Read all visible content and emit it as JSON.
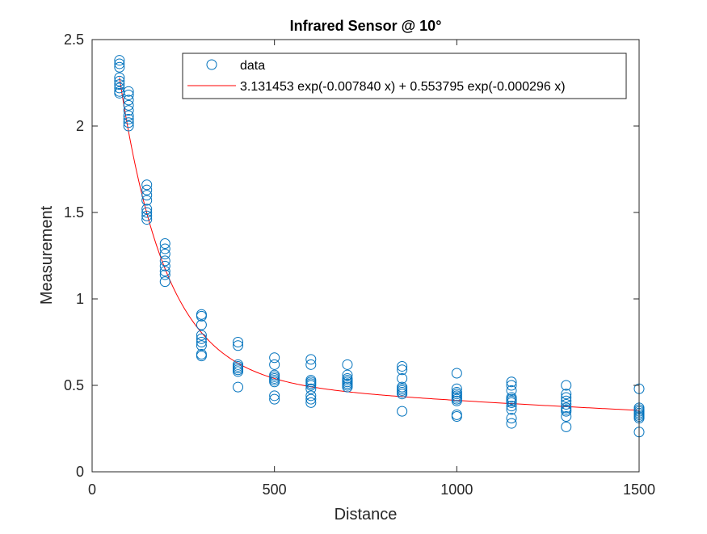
{
  "chart_data": {
    "type": "scatter",
    "title": "Infrared Sensor @ 10°",
    "xlabel": "Distance",
    "ylabel": "Measurement",
    "xlim": [
      0,
      1500
    ],
    "ylim": [
      0,
      2.5
    ],
    "xticks": [
      0,
      500,
      1000,
      1500
    ],
    "xtick_labels": [
      "0",
      "500",
      "1000",
      "1500"
    ],
    "yticks": [
      0,
      0.5,
      1,
      1.5,
      2,
      2.5
    ],
    "ytick_labels": [
      "0",
      "0.5",
      "1",
      "1.5",
      "2",
      "2.5"
    ],
    "grid": false,
    "legend_position": "top-right",
    "series": [
      {
        "name": "data",
        "kind": "markers",
        "marker": "circle",
        "color": "#0072BD",
        "points": [
          [
            75,
            2.38
          ],
          [
            75,
            2.36
          ],
          [
            75,
            2.34
          ],
          [
            75,
            2.28
          ],
          [
            75,
            2.26
          ],
          [
            75,
            2.24
          ],
          [
            75,
            2.22
          ],
          [
            75,
            2.2
          ],
          [
            75,
            2.19
          ],
          [
            100,
            2.2
          ],
          [
            100,
            2.18
          ],
          [
            100,
            2.15
          ],
          [
            100,
            2.12
          ],
          [
            100,
            2.09
          ],
          [
            100,
            2.06
          ],
          [
            100,
            2.04
          ],
          [
            100,
            2.02
          ],
          [
            100,
            2.0
          ],
          [
            150,
            1.66
          ],
          [
            150,
            1.63
          ],
          [
            150,
            1.6
          ],
          [
            150,
            1.57
          ],
          [
            150,
            1.52
          ],
          [
            150,
            1.5
          ],
          [
            150,
            1.48
          ],
          [
            150,
            1.46
          ],
          [
            200,
            1.32
          ],
          [
            200,
            1.29
          ],
          [
            200,
            1.26
          ],
          [
            200,
            1.22
          ],
          [
            200,
            1.19
          ],
          [
            200,
            1.16
          ],
          [
            200,
            1.14
          ],
          [
            200,
            1.1
          ],
          [
            300,
            0.91
          ],
          [
            300,
            0.9
          ],
          [
            300,
            0.85
          ],
          [
            300,
            0.79
          ],
          [
            300,
            0.77
          ],
          [
            300,
            0.75
          ],
          [
            300,
            0.73
          ],
          [
            300,
            0.68
          ],
          [
            300,
            0.67
          ],
          [
            400,
            0.75
          ],
          [
            400,
            0.73
          ],
          [
            400,
            0.62
          ],
          [
            400,
            0.61
          ],
          [
            400,
            0.6
          ],
          [
            400,
            0.59
          ],
          [
            400,
            0.58
          ],
          [
            400,
            0.49
          ],
          [
            500,
            0.66
          ],
          [
            500,
            0.62
          ],
          [
            500,
            0.56
          ],
          [
            500,
            0.55
          ],
          [
            500,
            0.54
          ],
          [
            500,
            0.53
          ],
          [
            500,
            0.52
          ],
          [
            500,
            0.44
          ],
          [
            500,
            0.42
          ],
          [
            600,
            0.65
          ],
          [
            600,
            0.62
          ],
          [
            600,
            0.53
          ],
          [
            600,
            0.52
          ],
          [
            600,
            0.51
          ],
          [
            600,
            0.5
          ],
          [
            600,
            0.48
          ],
          [
            600,
            0.44
          ],
          [
            600,
            0.42
          ],
          [
            600,
            0.4
          ],
          [
            700,
            0.62
          ],
          [
            700,
            0.56
          ],
          [
            700,
            0.54
          ],
          [
            700,
            0.53
          ],
          [
            700,
            0.52
          ],
          [
            700,
            0.51
          ],
          [
            700,
            0.5
          ],
          [
            700,
            0.49
          ],
          [
            850,
            0.61
          ],
          [
            850,
            0.59
          ],
          [
            850,
            0.54
          ],
          [
            850,
            0.49
          ],
          [
            850,
            0.48
          ],
          [
            850,
            0.47
          ],
          [
            850,
            0.46
          ],
          [
            850,
            0.45
          ],
          [
            850,
            0.35
          ],
          [
            1000,
            0.57
          ],
          [
            1000,
            0.48
          ],
          [
            1000,
            0.46
          ],
          [
            1000,
            0.45
          ],
          [
            1000,
            0.44
          ],
          [
            1000,
            0.43
          ],
          [
            1000,
            0.42
          ],
          [
            1000,
            0.41
          ],
          [
            1000,
            0.33
          ],
          [
            1000,
            0.32
          ],
          [
            1150,
            0.52
          ],
          [
            1150,
            0.5
          ],
          [
            1150,
            0.47
          ],
          [
            1150,
            0.43
          ],
          [
            1150,
            0.42
          ],
          [
            1150,
            0.41
          ],
          [
            1150,
            0.4
          ],
          [
            1150,
            0.38
          ],
          [
            1150,
            0.36
          ],
          [
            1150,
            0.31
          ],
          [
            1150,
            0.28
          ],
          [
            1300,
            0.5
          ],
          [
            1300,
            0.45
          ],
          [
            1300,
            0.43
          ],
          [
            1300,
            0.41
          ],
          [
            1300,
            0.39
          ],
          [
            1300,
            0.37
          ],
          [
            1300,
            0.36
          ],
          [
            1300,
            0.35
          ],
          [
            1300,
            0.32
          ],
          [
            1300,
            0.26
          ],
          [
            1500,
            0.48
          ],
          [
            1500,
            0.37
          ],
          [
            1500,
            0.36
          ],
          [
            1500,
            0.35
          ],
          [
            1500,
            0.34
          ],
          [
            1500,
            0.33
          ],
          [
            1500,
            0.32
          ],
          [
            1500,
            0.31
          ],
          [
            1500,
            0.23
          ]
        ]
      },
      {
        "name": "3.131453 exp(-0.007840 x) + 0.553795 exp(-0.000296 x)",
        "kind": "line",
        "color": "#FF0000",
        "model": {
          "a": 3.131453,
          "b": -0.00784,
          "c": 0.553795,
          "d": -0.000296
        },
        "x_range": [
          75,
          1500
        ]
      }
    ]
  }
}
